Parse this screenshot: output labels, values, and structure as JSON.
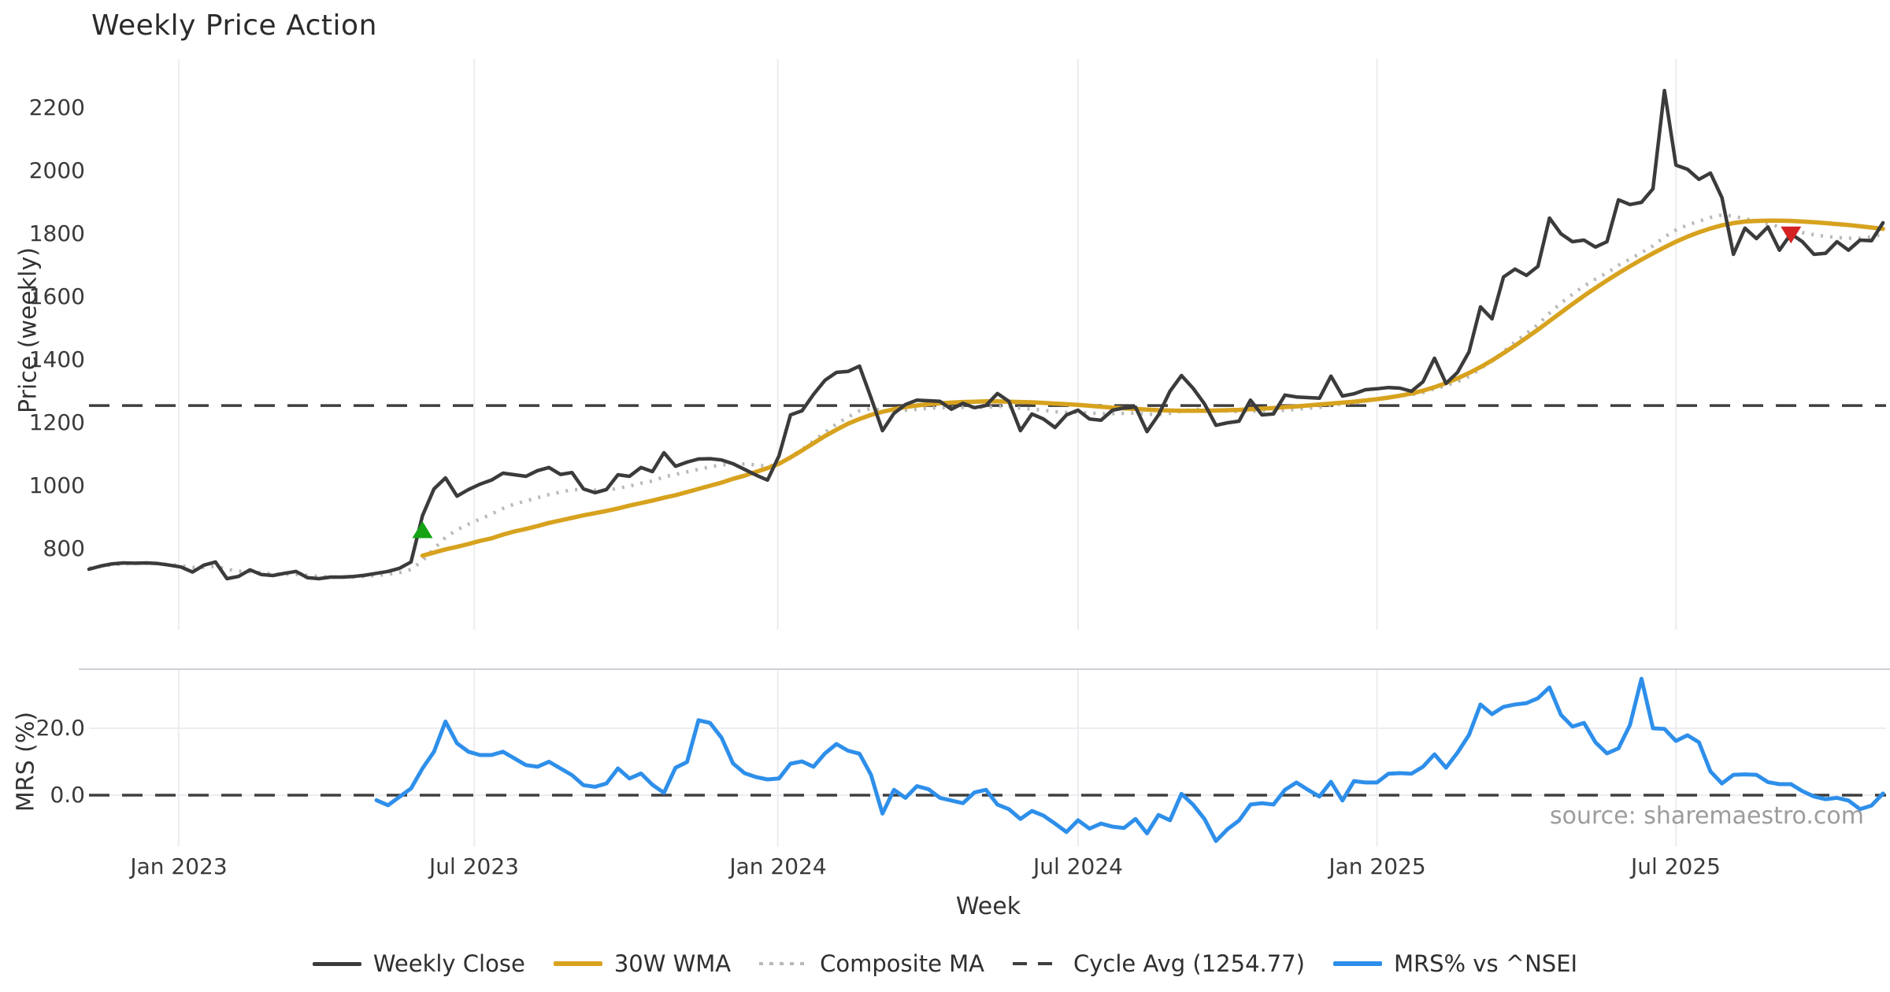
{
  "title": "Weekly Price Action",
  "source_note": "source: sharemaestro.com",
  "colors": {
    "weekly_close": "#3b3b3b",
    "wma_30w": "#d7a21e",
    "composite_ma": "#b9b9b9",
    "cycle_avg": "#3e3e3e",
    "mrs_line": "#2e8fea",
    "buy_marker": "#15a315",
    "sell_marker": "#d42222",
    "gridline": "#ececf1",
    "panel_border": "#d0d0d6",
    "tick_text": "#3a3a3a",
    "source_text": "#9c9c9c"
  },
  "legend": {
    "items": [
      {
        "label": "Weekly Close",
        "swatch": "solid-thin",
        "color": "#3b3b3b"
      },
      {
        "label": "30W WMA",
        "swatch": "solid",
        "color": "#d7a21e"
      },
      {
        "label": "Composite MA",
        "swatch": "dotted",
        "color": "#b9b9b9"
      },
      {
        "label": "Cycle Avg (1254.77)",
        "swatch": "dashed",
        "color": "#3e3e3e"
      },
      {
        "label": "MRS% vs ^NSEI",
        "swatch": "solid",
        "color": "#2e8fea"
      }
    ]
  },
  "chart_data": {
    "type": "line",
    "title": "Weekly Price Action",
    "xlabel": "Week",
    "x_ticks": [
      {
        "label": "Jan 2023",
        "week": 7.8
      },
      {
        "label": "Jul 2023",
        "week": 33.5
      },
      {
        "label": "Jan 2024",
        "week": 59.9
      },
      {
        "label": "Jul 2024",
        "week": 86.0
      },
      {
        "label": "Jan 2025",
        "week": 112.0
      },
      {
        "label": "Jul 2025",
        "week": 138.0
      }
    ],
    "panels": [
      {
        "id": "price",
        "ylabel": "Price (weekly)",
        "y_ticks": [
          {
            "label": "800",
            "value": 800
          },
          {
            "label": "1000",
            "value": 1000
          },
          {
            "label": "1200",
            "value": 1200
          },
          {
            "label": "1400",
            "value": 1400
          },
          {
            "label": "1600",
            "value": 1600
          },
          {
            "label": "1800",
            "value": 1800
          },
          {
            "label": "2000",
            "value": 2000
          },
          {
            "label": "2200",
            "value": 2200
          }
        ],
        "hline": {
          "name": "Cycle Avg",
          "value": 1254.77,
          "style": "dashed"
        },
        "markers": [
          {
            "type": "triangle-up",
            "name": "buy-signal",
            "week": 29,
            "value": 855,
            "color": "#15a315"
          },
          {
            "type": "triangle-down",
            "name": "sell-signal",
            "week": 148,
            "value": 1802,
            "color": "#d42222"
          }
        ],
        "series": [
          {
            "name": "Weekly Close",
            "color": "#3b3b3b",
            "style": "solid",
            "width": 4.5,
            "start_week": 0,
            "values": [
              735,
              745,
              752,
              755,
              754,
              755,
              753,
              748,
              742,
              726,
              748,
              758,
              705,
              712,
              733,
              718,
              715,
              722,
              728,
              708,
              705,
              710,
              710,
              712,
              716,
              722,
              728,
              738,
              758,
              905,
              990,
              1025,
              967,
              988,
              1005,
              1018,
              1040,
              1035,
              1030,
              1048,
              1058,
              1036,
              1042,
              990,
              978,
              988,
              1035,
              1030,
              1058,
              1045,
              1105,
              1062,
              1075,
              1085,
              1086,
              1082,
              1070,
              1052,
              1034,
              1018,
              1095,
              1225,
              1238,
              1290,
              1335,
              1360,
              1363,
              1380,
              1280,
              1175,
              1230,
              1258,
              1272,
              1270,
              1268,
              1243,
              1262,
              1248,
              1255,
              1293,
              1268,
              1175,
              1228,
              1212,
              1185,
              1225,
              1240,
              1212,
              1208,
              1240,
              1247,
              1250,
              1172,
              1225,
              1300,
              1350,
              1310,
              1260,
              1192,
              1200,
              1205,
              1272,
              1225,
              1228,
              1288,
              1282,
              1280,
              1278,
              1348,
              1285,
              1292,
              1305,
              1308,
              1312,
              1310,
              1300,
              1330,
              1405,
              1325,
              1360,
              1425,
              1568,
              1530,
              1663,
              1688,
              1668,
              1697,
              1850,
              1800,
              1775,
              1780,
              1758,
              1775,
              1908,
              1893,
              1900,
              1943,
              2255,
              2018,
              2005,
              1973,
              1993,
              1915,
              1735,
              1818,
              1785,
              1822,
              1748,
              1800,
              1775,
              1735,
              1738,
              1775,
              1748,
              1780,
              1778,
              1835
            ]
          },
          {
            "name": "30W WMA",
            "color": "#d7a21e",
            "style": "solid",
            "width": 5.5,
            "start_week": 29,
            "values": [
              778,
              788,
              798,
              806,
              815,
              825,
              833,
              845,
              855,
              863,
              872,
              882,
              890,
              898,
              906,
              913,
              920,
              928,
              937,
              945,
              953,
              962,
              970,
              980,
              990,
              1000,
              1010,
              1022,
              1032,
              1044,
              1056,
              1070,
              1090,
              1112,
              1135,
              1158,
              1178,
              1197,
              1212,
              1225,
              1235,
              1243,
              1250,
              1255,
              1259,
              1262,
              1264,
              1266,
              1267,
              1268,
              1268,
              1267,
              1266,
              1265,
              1263,
              1261,
              1259,
              1257,
              1254,
              1251,
              1248,
              1246,
              1244,
              1242,
              1240,
              1239,
              1238,
              1238,
              1238,
              1239,
              1240,
              1241,
              1243,
              1245,
              1247,
              1250,
              1252,
              1255,
              1258,
              1261,
              1264,
              1267,
              1271,
              1275,
              1280,
              1286,
              1293,
              1302,
              1313,
              1326,
              1341,
              1358,
              1377,
              1398,
              1421,
              1445,
              1470,
              1496,
              1523,
              1550,
              1577,
              1603,
              1628,
              1652,
              1675,
              1697,
              1718,
              1738,
              1757,
              1775,
              1791,
              1805,
              1817,
              1827,
              1834,
              1839,
              1841,
              1842,
              1842,
              1841,
              1839,
              1837,
              1834,
              1831,
              1828,
              1824,
              1820,
              1816
            ]
          },
          {
            "name": "Composite MA",
            "color": "#b9b9b9",
            "style": "dotted",
            "width": 4.5,
            "start_week": 0,
            "values": [
              738,
              744,
              749,
              752,
              754,
              754,
              753,
              750,
              746,
              741,
              741,
              744,
              735,
              729,
              727,
              724,
              720,
              719,
              719,
              716,
              712,
              710,
              709,
              710,
              712,
              715,
              719,
              724,
              734,
              762,
              800,
              836,
              860,
              878,
              894,
              910,
              928,
              942,
              952,
              962,
              972,
              980,
              987,
              988,
              986,
              986,
              992,
              999,
              1008,
              1015,
              1028,
              1036,
              1044,
              1052,
              1060,
              1066,
              1069,
              1069,
              1066,
              1062,
              1068,
              1092,
              1115,
              1142,
              1170,
              1196,
              1218,
              1238,
              1245,
              1240,
              1238,
              1240,
              1243,
              1246,
              1248,
              1248,
              1249,
              1249,
              1249,
              1252,
              1252,
              1246,
              1243,
              1240,
              1235,
              1233,
              1233,
              1231,
              1229,
              1229,
              1230,
              1231,
              1227,
              1226,
              1230,
              1237,
              1242,
              1243,
              1240,
              1237,
              1235,
              1237,
              1237,
              1237,
              1240,
              1243,
              1246,
              1249,
              1256,
              1260,
              1264,
              1269,
              1274,
              1280,
              1285,
              1289,
              1296,
              1308,
              1318,
              1330,
              1347,
              1372,
              1396,
              1426,
              1456,
              1484,
              1512,
              1548,
              1580,
              1608,
              1634,
              1656,
              1676,
              1700,
              1720,
              1740,
              1762,
              1790,
              1812,
              1828,
              1840,
              1852,
              1860,
              1856,
              1848,
              1840,
              1832,
              1822,
              1812,
              1804,
              1797,
              1792,
              1788,
              1786,
              1786,
              1790,
              1800
            ]
          }
        ]
      },
      {
        "id": "mrs",
        "ylabel": "MRS (%)",
        "y_ticks": [
          {
            "label": "20.0",
            "value": 20
          },
          {
            "label": "0.0",
            "value": 0
          }
        ],
        "hline": {
          "name": "zero",
          "value": 0,
          "style": "dashed"
        },
        "series": [
          {
            "name": "MRS% vs ^NSEI",
            "color": "#2e8fea",
            "style": "solid",
            "width": 5,
            "start_week": 25,
            "values": [
              -1.5,
              -3,
              -0.5,
              2,
              8,
              13,
              22,
              15.5,
              13,
              12,
              12,
              13,
              11,
              9,
              8.5,
              10,
              8,
              6,
              3,
              2.5,
              3.5,
              8,
              5,
              6.5,
              3.1,
              0.7,
              8.2,
              9.9,
              22.4,
              21.6,
              17.2,
              9.5,
              6.6,
              5.4,
              4.7,
              5,
              9.4,
              10.1,
              8.5,
              12.5,
              15.3,
              13.3,
              12.4,
              6.1,
              -5.5,
              1.6,
              -0.8,
              2.7,
              1.8,
              -0.8,
              -1.6,
              -2.4,
              0.8,
              1.6,
              -2.8,
              -4.2,
              -7.1,
              -4.7,
              -6.1,
              -8.5,
              -11,
              -7.5,
              -10,
              -8.5,
              -9.4,
              -9.8,
              -7.1,
              -11.4,
              -5.9,
              -7.5,
              0.4,
              -2.8,
              -7.1,
              -13.7,
              -10.2,
              -7.6,
              -2.8,
              -2.4,
              -2.8,
              1.6,
              3.8,
              1.6,
              -0.4,
              4,
              -1.6,
              4.2,
              3.8,
              3.8,
              6.4,
              6.6,
              6.4,
              8.5,
              12.2,
              8.2,
              12.7,
              18,
              27.1,
              24.2,
              26.4,
              27.1,
              27.5,
              29,
              32.2,
              24,
              20.5,
              21.6,
              15.8,
              12.5,
              14,
              21,
              34.8,
              20,
              19.8,
              16.2,
              17.9,
              15.8,
              7.1,
              3.5,
              6.1,
              6.2,
              6.1,
              3.9,
              3.3,
              3.3,
              1.2,
              -0.4,
              -1.2,
              -0.8,
              -1.6,
              -4.2,
              -3.1,
              0.5
            ]
          }
        ]
      }
    ]
  }
}
